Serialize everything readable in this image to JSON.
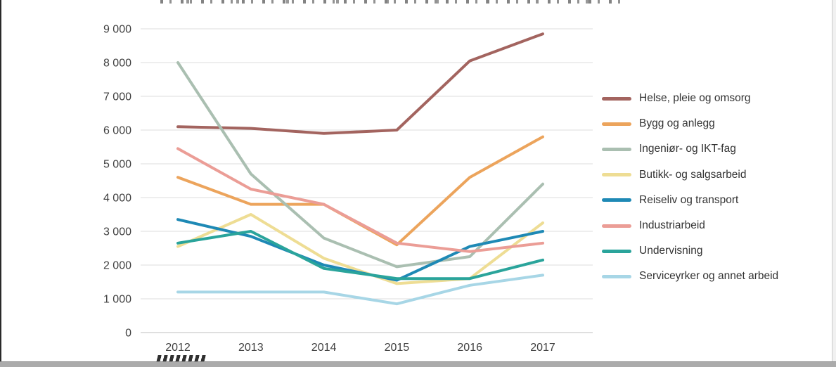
{
  "chart_data": {
    "type": "line",
    "title": "",
    "xlabel": "",
    "ylabel": "",
    "categories": [
      "2012",
      "2013",
      "2014",
      "2015",
      "2016",
      "2017"
    ],
    "series": [
      {
        "name": "Helse, pleie og omsorg",
        "color": "#a3645f",
        "values": [
          6100,
          6050,
          5900,
          6000,
          8050,
          8850
        ]
      },
      {
        "name": "Bygg og anlegg",
        "color": "#ecа45c",
        "values": [
          4600,
          3800,
          3800,
          2600,
          4600,
          5800
        ]
      },
      {
        "name": "Ingeniør- og IKT-fag",
        "color": "#aabfb1",
        "values": [
          8000,
          4700,
          2800,
          1950,
          2250,
          4400
        ]
      },
      {
        "name": "Butikk- og salgsarbeid",
        "color": "#eedd94",
        "values": [
          2550,
          3500,
          2200,
          1450,
          1600,
          3250
        ]
      },
      {
        "name": "Reiseliv og transport",
        "color": "#1e89b5",
        "values": [
          3350,
          2850,
          2000,
          1550,
          2550,
          3000
        ]
      },
      {
        "name": "Industriarbeid",
        "color": "#eb9d96",
        "values": [
          5450,
          4250,
          3800,
          2650,
          2400,
          2650
        ]
      },
      {
        "name": "Undervisning",
        "color": "#2aa49b",
        "values": [
          2650,
          3000,
          1900,
          1600,
          1600,
          2150
        ]
      },
      {
        "name": "Serviceyrker og annet arbeid",
        "color": "#a7d6e6",
        "values": [
          1200,
          1200,
          1200,
          850,
          1400,
          1700
        ]
      }
    ],
    "ylim": [
      0,
      9000
    ],
    "ytick_interval": 1000,
    "ytick_labels": [
      "0",
      "1 000",
      "2 000",
      "3 000",
      "4 000",
      "5 000",
      "6 000",
      "7 000",
      "8 000",
      "9 000"
    ],
    "grid": "horizontal",
    "legend_position": "right"
  }
}
